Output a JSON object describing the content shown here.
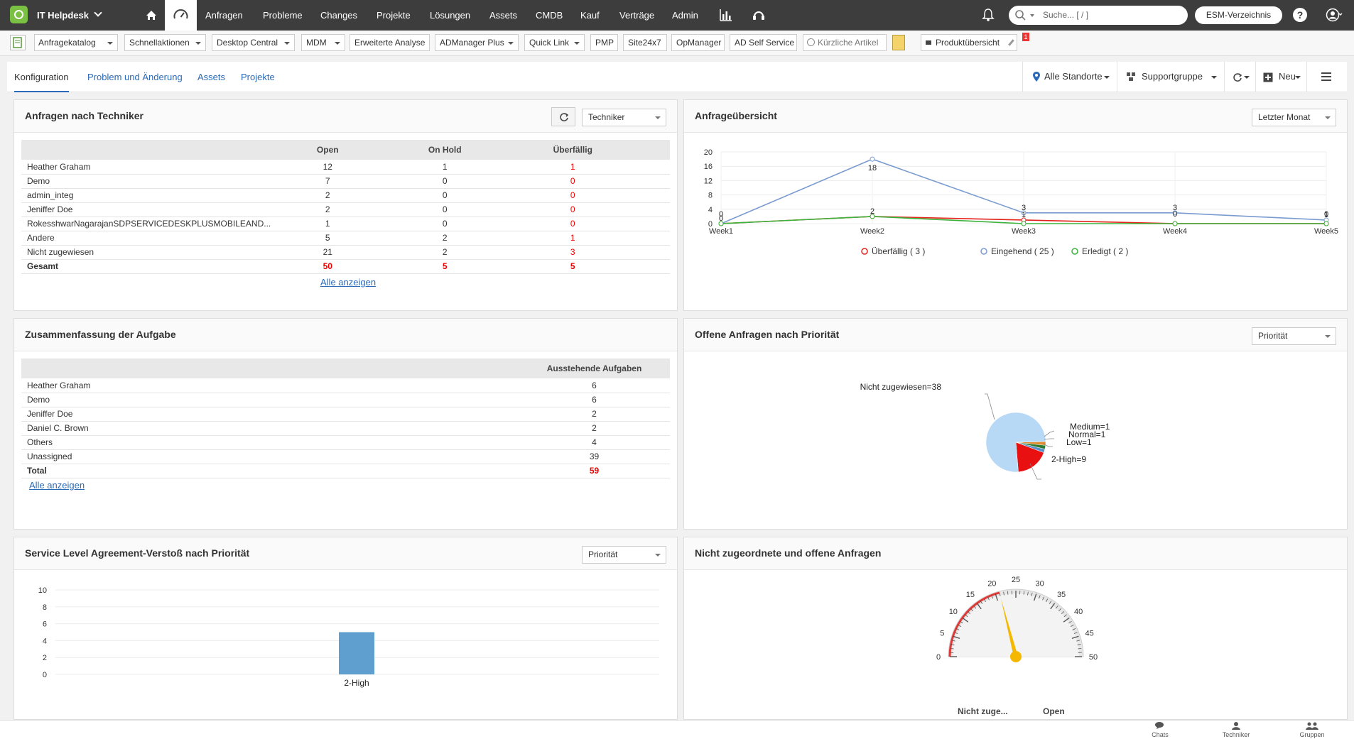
{
  "topnav": {
    "app_title": "IT Helpdesk",
    "items": [
      "Anfragen",
      "Probleme",
      "Changes",
      "Projekte",
      "Lösungen",
      "Assets",
      "CMDB",
      "Kauf",
      "Verträge",
      "Admin"
    ],
    "search_placeholder": "Suche... [ / ]",
    "esm_label": "ESM-Verzeichnis"
  },
  "toolbar": {
    "items": [
      {
        "label": "Anfragekatalog"
      },
      {
        "label": "Schnellaktionen"
      },
      {
        "label": "Desktop Central"
      },
      {
        "label": "MDM"
      },
      {
        "label": "Erweiterte Analyse"
      },
      {
        "label": "ADManager Plus"
      },
      {
        "label": "Quick Link"
      },
      {
        "label": "PMP"
      },
      {
        "label": "Site24x7"
      },
      {
        "label": "OpManager"
      },
      {
        "label": "AD Self Service"
      },
      {
        "label": "Kürzliche Artikel"
      },
      {
        "label": "Produktübersicht"
      }
    ],
    "badge": "1"
  },
  "tabs": [
    "Konfiguration",
    "Problem und Änderung",
    "Assets",
    "Projekte"
  ],
  "controls": {
    "location": "Alle Standorte",
    "group": "Supportgruppe",
    "new": "Neu"
  },
  "panel_tech": {
    "title": "Anfragen nach Techniker",
    "filter": "Techniker",
    "columns": [
      "Open",
      "On Hold",
      "Überfällig"
    ],
    "rows": [
      {
        "name": "Heather Graham",
        "open": "12",
        "hold": "1",
        "over": "1"
      },
      {
        "name": "Demo",
        "open": "7",
        "hold": "0",
        "over": "0"
      },
      {
        "name": "admin_integ",
        "open": "2",
        "hold": "0",
        "over": "0"
      },
      {
        "name": "Jeniffer Doe",
        "open": "2",
        "hold": "0",
        "over": "0"
      },
      {
        "name": "RokesshwarNagarajanSDPSERVICEDESKPLUSMOBILEAND...",
        "open": "1",
        "hold": "0",
        "over": "0"
      },
      {
        "name": "Andere",
        "open": "5",
        "hold": "2",
        "over": "1"
      },
      {
        "name": "Nicht zugewiesen",
        "open": "21",
        "hold": "2",
        "over": "3"
      }
    ],
    "total": {
      "name": "Gesamt",
      "open": "50",
      "hold": "5",
      "over": "5"
    },
    "show_all": "Alle anzeigen"
  },
  "panel_overview": {
    "title": "Anfrageübersicht",
    "filter": "Letzter Monat"
  },
  "panel_tasks": {
    "title": "Zusammenfassung der Aufgabe",
    "column": "Ausstehende Aufgaben",
    "rows": [
      {
        "name": "Heather Graham",
        "value": "6"
      },
      {
        "name": "Demo",
        "value": "6"
      },
      {
        "name": "Jeniffer Doe",
        "value": "2"
      },
      {
        "name": "Daniel C. Brown",
        "value": "2"
      },
      {
        "name": "Others",
        "value": "4"
      },
      {
        "name": "Unassigned",
        "value": "39"
      }
    ],
    "total": {
      "name": "Total",
      "value": "59"
    },
    "show_all": "Alle anzeigen"
  },
  "panel_priority": {
    "title": "Offene Anfragen nach Priorität",
    "filter": "Priorität"
  },
  "panel_sla": {
    "title": "Service Level Agreement-Verstoß nach Priorität",
    "filter": "Priorität"
  },
  "panel_unassigned": {
    "title": "Nicht zugeordnete und offene Anfragen",
    "label_left": "Nicht zuge...",
    "label_right": "Open"
  },
  "bottombar": {
    "items": [
      "Chats",
      "Techniker",
      "Gruppen"
    ]
  },
  "chart_data": [
    {
      "type": "line",
      "title": "Anfrageübersicht",
      "x": [
        "Week1",
        "Week2",
        "Week3",
        "Week4",
        "Week5"
      ],
      "ylim": [
        0,
        20
      ],
      "series": [
        {
          "name": "Überfällig ( 3 )",
          "color": "#e3241b",
          "values": [
            0,
            2,
            1,
            0,
            0
          ]
        },
        {
          "name": "Eingehend ( 25 )",
          "color": "#7a9bd0",
          "values": [
            0,
            18,
            3,
            3,
            1
          ]
        },
        {
          "name": "Erledigt ( 2 )",
          "color": "#3cb33c",
          "values": [
            0,
            2,
            0,
            0,
            0
          ]
        }
      ]
    },
    {
      "type": "pie",
      "title": "Offene Anfragen nach Priorität",
      "categories": [
        "Nicht zugewiesen",
        "2-High",
        "Low",
        "Normal",
        "Medium"
      ],
      "values": [
        38,
        9,
        1,
        1,
        1
      ],
      "colors": [
        "#b8d9f5",
        "#e81010",
        "#5a8fc7",
        "#2f7a2f",
        "#e38a2a"
      ]
    },
    {
      "type": "bar",
      "title": "Service Level Agreement-Verstoß nach Priorität",
      "categories": [
        "2-High"
      ],
      "values": [
        5
      ],
      "ylim": [
        0,
        10
      ],
      "color": "#5f9fcf"
    },
    {
      "type": "gauge",
      "title": "Nicht zugeordnete und offene Anfragen",
      "value": 21,
      "range": [
        0,
        50
      ],
      "ticks": [
        0,
        5,
        10,
        15,
        20,
        25,
        30,
        35,
        40,
        45,
        50
      ]
    }
  ]
}
